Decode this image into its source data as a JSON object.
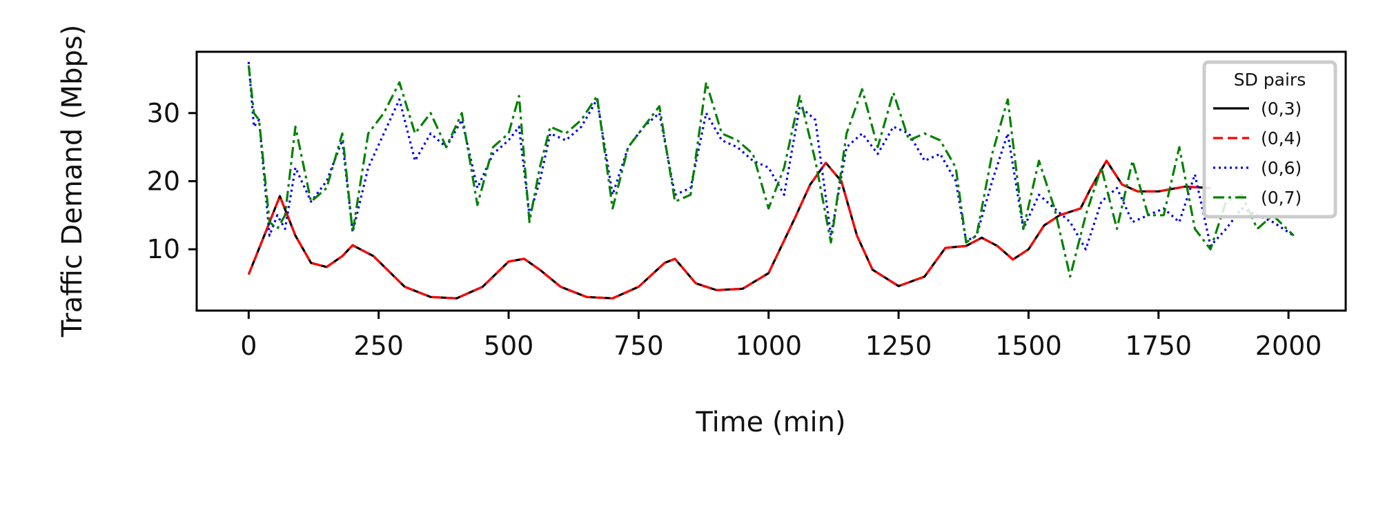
{
  "chart_data": {
    "type": "line",
    "xlabel": "Time (min)",
    "ylabel": "Traffic Demand (Mbps)",
    "xlim": [
      -100,
      2110
    ],
    "ylim": [
      1,
      39
    ],
    "xticks": [
      0,
      250,
      500,
      750,
      1000,
      1250,
      1500,
      1750,
      2000
    ],
    "yticks": [
      10,
      20,
      30
    ],
    "grid": false,
    "legend": {
      "title": "SD pairs",
      "placement": "top-right"
    },
    "series": [
      {
        "name": "(0,3)",
        "color": "#000000",
        "dash": "solid",
        "x": [
          0,
          30,
          60,
          90,
          120,
          150,
          180,
          200,
          240,
          300,
          350,
          400,
          450,
          500,
          530,
          560,
          600,
          650,
          700,
          750,
          800,
          820,
          860,
          900,
          950,
          1000,
          1050,
          1080,
          1110,
          1140,
          1170,
          1200,
          1250,
          1300,
          1340,
          1380,
          1410,
          1440,
          1470,
          1500,
          1530,
          1560,
          1600,
          1620,
          1650,
          1680,
          1710,
          1750,
          1800,
          1850
        ],
        "y": [
          6.3,
          12,
          17.8,
          12,
          8,
          7.4,
          9,
          10.6,
          9,
          4.5,
          3,
          2.8,
          4.5,
          8.2,
          8.6,
          7,
          4.5,
          3,
          2.8,
          4.5,
          8,
          8.6,
          5,
          4,
          4.2,
          6.5,
          14.5,
          19.5,
          22.7,
          20,
          12,
          7,
          4.6,
          6,
          10.2,
          10.5,
          11.7,
          10.5,
          8.5,
          10,
          13.5,
          15,
          16,
          19,
          23,
          19.5,
          18.5,
          18.5,
          19.2,
          19
        ]
      },
      {
        "name": "(0,4)",
        "color": "#ff0000",
        "dash": "dashed",
        "x": [
          0,
          30,
          60,
          90,
          120,
          150,
          180,
          200,
          240,
          300,
          350,
          400,
          450,
          500,
          530,
          560,
          600,
          650,
          700,
          750,
          800,
          820,
          860,
          900,
          950,
          1000,
          1050,
          1080,
          1110,
          1140,
          1170,
          1200,
          1250,
          1300,
          1340,
          1380,
          1410,
          1440,
          1470,
          1500,
          1530,
          1560,
          1600,
          1620,
          1650,
          1680,
          1710,
          1750,
          1800,
          1850
        ],
        "y": [
          6.3,
          12,
          17.8,
          12,
          8,
          7.4,
          9,
          10.6,
          9,
          4.5,
          3,
          2.8,
          4.5,
          8.2,
          8.6,
          7,
          4.5,
          3,
          2.8,
          4.5,
          8,
          8.6,
          5,
          4,
          4.2,
          6.5,
          14.5,
          19.5,
          22.7,
          20,
          12,
          7,
          4.6,
          6,
          10.2,
          10.5,
          11.7,
          10.5,
          8.5,
          10,
          13.5,
          15,
          16,
          19,
          23,
          19.5,
          18.5,
          18.5,
          19.2,
          19
        ]
      },
      {
        "name": "(0,6)",
        "color": "#0000ee",
        "dash": "dotted",
        "x": [
          0,
          10,
          20,
          40,
          55,
          70,
          90,
          120,
          150,
          180,
          200,
          230,
          260,
          290,
          320,
          350,
          380,
          410,
          440,
          470,
          500,
          520,
          540,
          560,
          580,
          610,
          640,
          670,
          700,
          730,
          760,
          790,
          820,
          850,
          880,
          910,
          940,
          970,
          1000,
          1030,
          1060,
          1090,
          1120,
          1150,
          1180,
          1210,
          1240,
          1270,
          1300,
          1330,
          1360,
          1380,
          1400,
          1430,
          1460,
          1490,
          1520,
          1550,
          1580,
          1610,
          1640,
          1670,
          1700,
          1730,
          1760,
          1790,
          1820,
          1850,
          1880,
          1910,
          1940,
          1970,
          2010
        ],
        "y": [
          37.5,
          28,
          29,
          12,
          15,
          13,
          22,
          17,
          20,
          26,
          12.5,
          22,
          27,
          32,
          23,
          27,
          25,
          29,
          19,
          24,
          26,
          28,
          15,
          20,
          27,
          26,
          28,
          32,
          18,
          25,
          28,
          30,
          18,
          19,
          30,
          26,
          25,
          23,
          22,
          18,
          31,
          29,
          12,
          25,
          27,
          24,
          28,
          27,
          23,
          24,
          20,
          11.2,
          12,
          20,
          27,
          13,
          18,
          16,
          14,
          10,
          17,
          19,
          14,
          15,
          16,
          14,
          21,
          10.5,
          13,
          16,
          15,
          14,
          12
        ]
      },
      {
        "name": "(0,7)",
        "color": "#008000",
        "dash": "dashdot",
        "x": [
          0,
          10,
          20,
          40,
          55,
          70,
          90,
          120,
          150,
          180,
          200,
          230,
          260,
          290,
          320,
          350,
          380,
          410,
          440,
          470,
          500,
          520,
          540,
          560,
          580,
          610,
          640,
          670,
          700,
          730,
          760,
          790,
          820,
          850,
          880,
          910,
          940,
          970,
          1000,
          1030,
          1060,
          1090,
          1120,
          1150,
          1180,
          1210,
          1240,
          1270,
          1300,
          1330,
          1360,
          1380,
          1400,
          1430,
          1460,
          1490,
          1520,
          1550,
          1580,
          1610,
          1640,
          1670,
          1700,
          1730,
          1760,
          1790,
          1820,
          1850,
          1880,
          1910,
          1940,
          1970,
          2010
        ],
        "y": [
          37,
          30,
          29,
          14,
          13,
          15,
          28,
          17,
          19,
          27,
          12.5,
          27,
          30,
          34.5,
          27,
          30,
          25,
          30,
          16.5,
          25,
          27,
          32.5,
          14,
          22,
          28,
          27,
          29,
          32.5,
          16,
          25,
          28,
          31,
          17,
          18,
          34.5,
          27,
          26,
          24,
          16,
          22,
          32.5,
          23,
          11,
          27,
          33.5,
          25,
          33,
          26,
          27,
          26,
          22,
          11,
          12,
          24,
          32,
          13,
          23,
          16,
          6,
          15,
          22,
          13,
          23,
          15,
          15,
          25,
          13,
          10,
          17,
          18,
          13,
          15,
          12
        ]
      }
    ]
  }
}
